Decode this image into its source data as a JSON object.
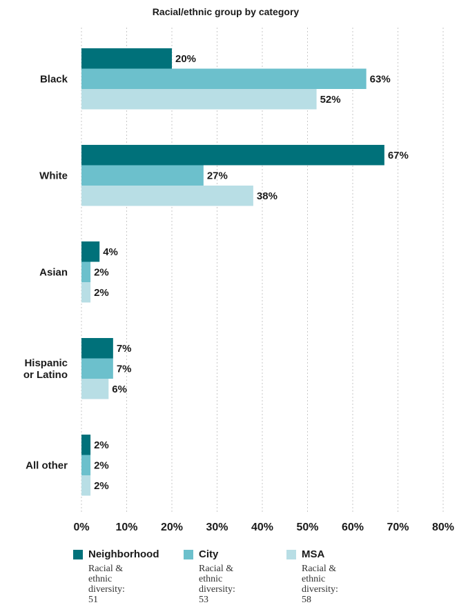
{
  "chart_data": {
    "type": "bar",
    "orientation": "horizontal",
    "title": "Racial/ethnic group by category",
    "categories": [
      "Black",
      "White",
      "Asian",
      "Hispanic or Latino",
      "All other"
    ],
    "category_lines": [
      [
        "Black"
      ],
      [
        "White"
      ],
      [
        "Asian"
      ],
      [
        "Hispanic",
        "or Latino"
      ],
      [
        "All other"
      ]
    ],
    "series": [
      {
        "name": "Neighborhood",
        "color": "#00717a",
        "values": [
          20,
          67,
          4,
          7,
          2
        ],
        "labels": [
          "20%",
          "67%",
          "4%",
          "7%",
          "2%"
        ]
      },
      {
        "name": "City",
        "color": "#6cc0cc",
        "values": [
          63,
          27,
          2,
          7,
          2
        ],
        "labels": [
          "63%",
          "27%",
          "2%",
          "7%",
          "2%"
        ]
      },
      {
        "name": "MSA",
        "color": "#b8dee5",
        "values": [
          52,
          38,
          2,
          6,
          2
        ],
        "labels": [
          "52%",
          "38%",
          "2%",
          "6%",
          "2%"
        ]
      }
    ],
    "xlim": [
      0,
      80
    ],
    "xticks": [
      0,
      10,
      20,
      30,
      40,
      50,
      60,
      70,
      80
    ],
    "xtick_labels": [
      "0%",
      "10%",
      "20%",
      "30%",
      "40%",
      "50%",
      "60%",
      "70%",
      "80%"
    ],
    "grid": true,
    "legend": {
      "placement": "bottom",
      "items": [
        {
          "name": "Neighborhood",
          "color": "#00717a",
          "sub_lines": [
            "Racial & ethnic",
            "diversity: 51"
          ]
        },
        {
          "name": "City",
          "color": "#6cc0cc",
          "sub_lines": [
            "Racial & ethnic",
            "diversity: 53"
          ]
        },
        {
          "name": "MSA",
          "color": "#b8dee5",
          "sub_lines": [
            "Racial & ethnic",
            "diversity: 58"
          ]
        }
      ]
    }
  }
}
